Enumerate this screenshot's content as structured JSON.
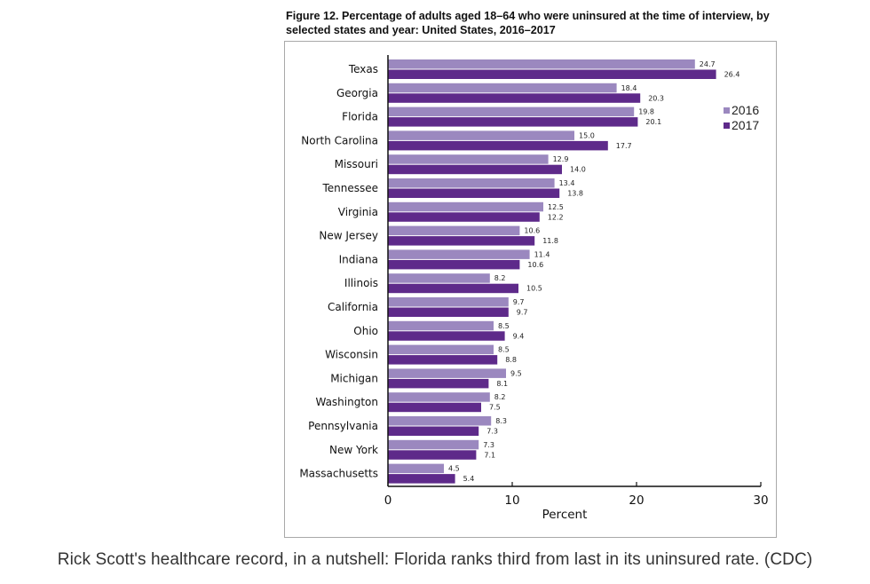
{
  "chart_data": {
    "type": "bar",
    "orientation": "horizontal",
    "title": "Figure 12. Percentage of adults aged 18–64 who were uninsured at the time of interview, by selected states and year: United States, 2016–2017",
    "xlabel": "Percent",
    "ylabel": "",
    "xlim": [
      0,
      30
    ],
    "xticks": [
      0,
      10,
      20,
      30
    ],
    "grid": false,
    "legend_position": "top-right",
    "categories": [
      "Texas",
      "Georgia",
      "Florida",
      "North Carolina",
      "Missouri",
      "Tennessee",
      "Virginia",
      "New Jersey",
      "Indiana",
      "Illinois",
      "California",
      "Ohio",
      "Wisconsin",
      "Michigan",
      "Washington",
      "Pennsylvania",
      "New York",
      "Massachusetts"
    ],
    "series": [
      {
        "name": "2016",
        "color": "#9b88bf",
        "values": [
          24.7,
          18.4,
          19.8,
          15.0,
          12.9,
          13.4,
          12.5,
          10.6,
          11.4,
          8.2,
          9.7,
          8.5,
          8.5,
          9.5,
          8.2,
          8.3,
          7.3,
          4.5
        ],
        "labels": [
          "24.7",
          "18.4",
          "19.8",
          "15.0",
          "12.9",
          "13.4",
          "12.5",
          "10.6",
          "11.4",
          "8.2",
          "9.7",
          "8.5",
          "8.5",
          "9.5",
          "8.2",
          "8.3",
          "7.3",
          "4.5"
        ]
      },
      {
        "name": "2017",
        "color": "#5e2a8a",
        "values": [
          26.4,
          20.3,
          20.1,
          17.7,
          14.0,
          13.8,
          12.2,
          11.8,
          10.6,
          10.5,
          9.7,
          9.4,
          8.8,
          8.1,
          7.5,
          7.3,
          7.1,
          5.4
        ],
        "labels": [
          "26.4",
          "20.3",
          "20.1",
          "17.7",
          "14.0",
          "13.8",
          "12.2",
          "11.8",
          "10.6",
          "10.5",
          "9.7",
          "9.4",
          "8.8",
          "8.1",
          "7.5",
          "7.3",
          "7.1",
          "5.4"
        ]
      }
    ]
  },
  "caption": "Rick Scott's healthcare record, in a nutshell: Florida ranks third from last in its uninsured rate. (CDC)"
}
